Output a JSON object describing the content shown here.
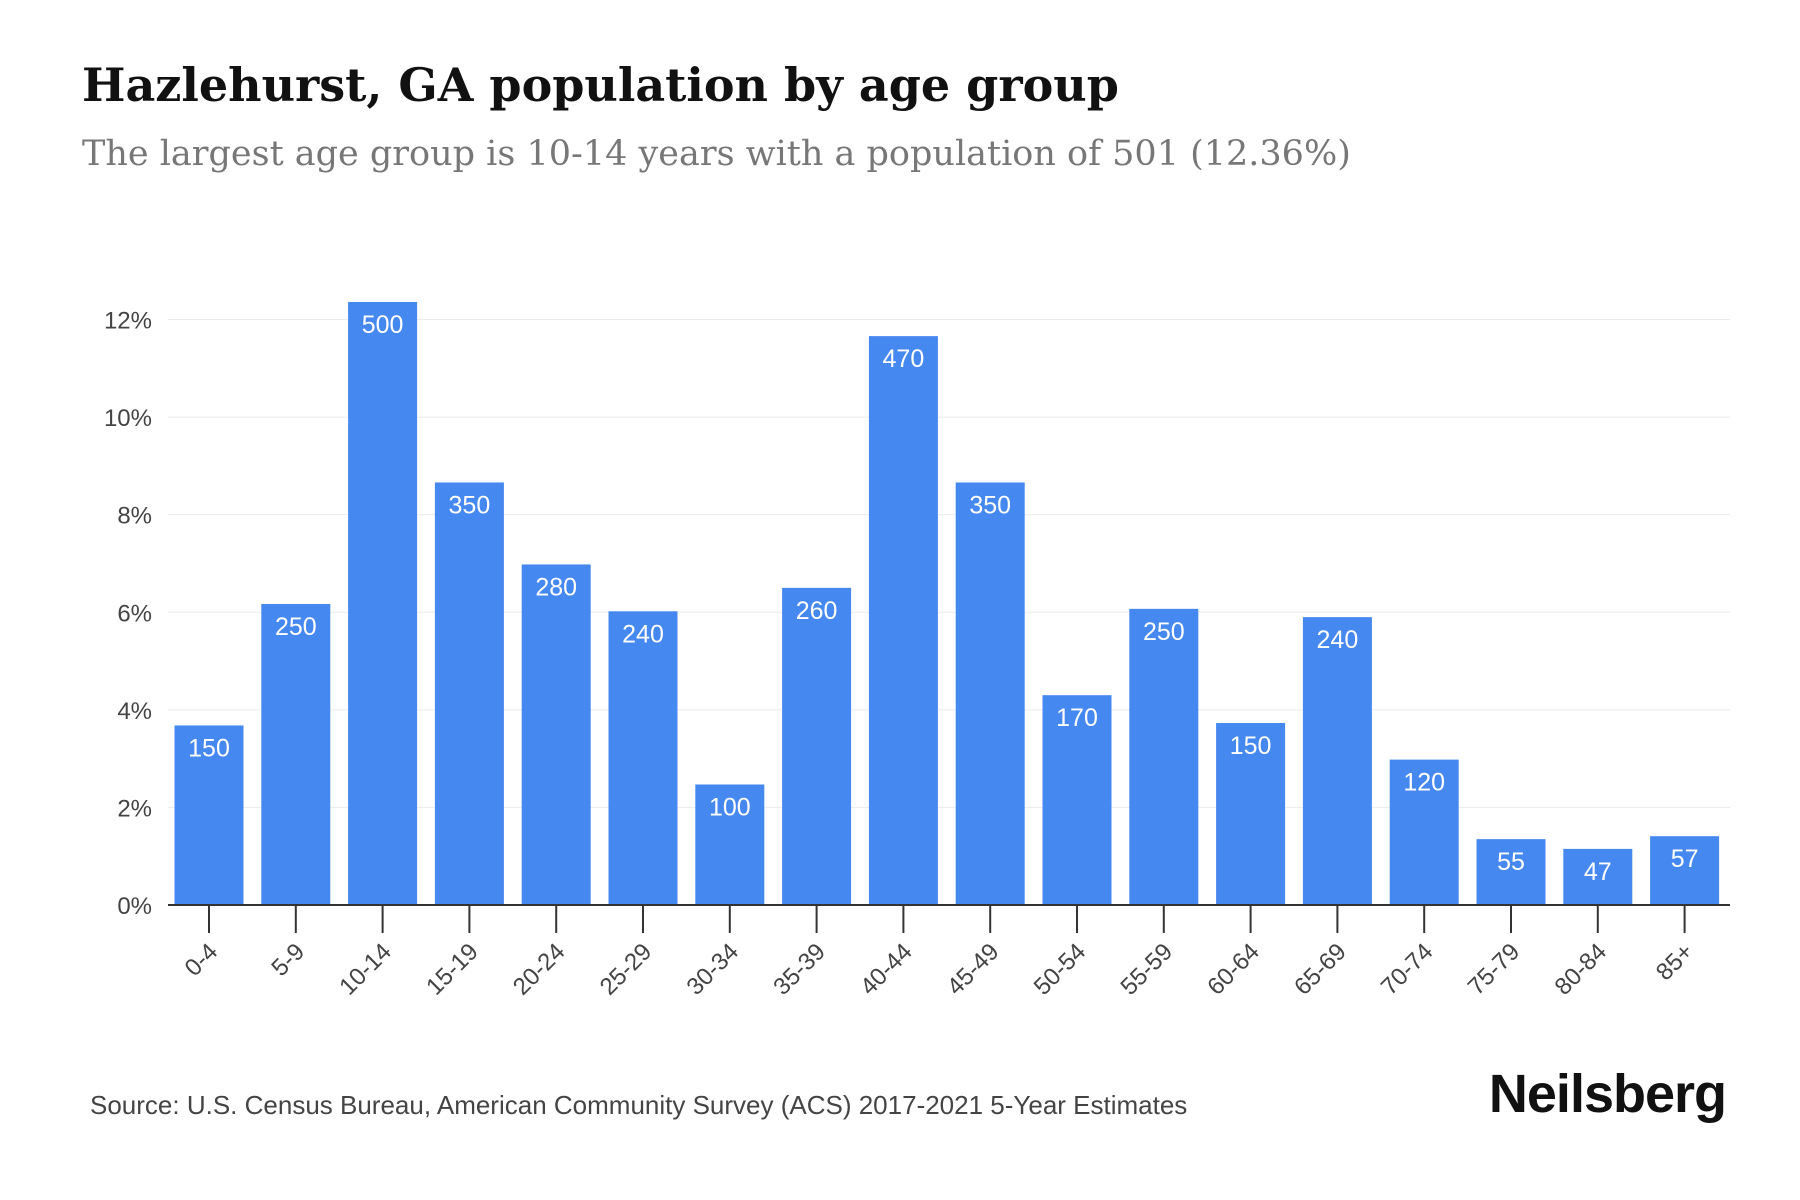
{
  "title": "Hazlehurst, GA population by age group",
  "subtitle": "The largest age group is 10-14 years with a population of 501 (12.36%)",
  "source": "Source: U.S. Census Bureau, American Community Survey (ACS) 2017-2021 5-Year Estimates",
  "brand": "Neilsberg",
  "colors": {
    "bar": "#4588F0",
    "bar_label": "#ffffff",
    "grid": "#ebebeb",
    "axis": "#333333",
    "tick_text": "#444444"
  },
  "chart_data": {
    "type": "bar",
    "categories": [
      "0-4",
      "5-9",
      "10-14",
      "15-19",
      "20-24",
      "25-29",
      "30-34",
      "35-39",
      "40-44",
      "45-49",
      "50-54",
      "55-59",
      "60-64",
      "65-69",
      "70-74",
      "75-79",
      "80-84",
      "85+"
    ],
    "values": [
      3.68,
      6.17,
      12.36,
      8.66,
      6.98,
      6.02,
      2.47,
      6.5,
      11.66,
      8.66,
      4.3,
      6.07,
      3.73,
      5.9,
      2.98,
      1.35,
      1.15,
      1.41
    ],
    "data_labels": [
      "150",
      "250",
      "500",
      "350",
      "280",
      "240",
      "100",
      "260",
      "470",
      "350",
      "170",
      "250",
      "150",
      "240",
      "120",
      "55",
      "47",
      "57"
    ],
    "y_ticks": [
      0,
      2,
      4,
      6,
      8,
      10,
      12
    ],
    "y_tick_labels": [
      "0%",
      "2%",
      "4%",
      "6%",
      "8%",
      "10%",
      "12%"
    ],
    "ylim": [
      0,
      12.4
    ],
    "xlabel": "",
    "ylabel": "",
    "grid": true,
    "legend": "none"
  }
}
